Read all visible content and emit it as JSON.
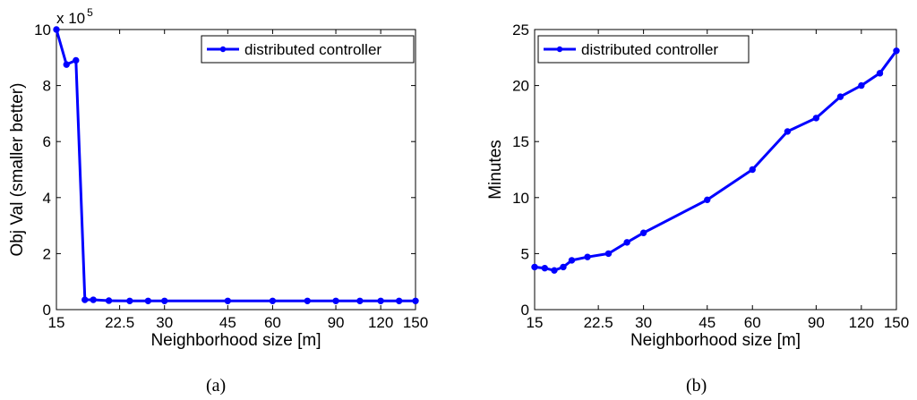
{
  "chart_data": [
    {
      "type": "line",
      "caption": "(a)",
      "xscale": "log",
      "xlim": [
        15,
        150
      ],
      "xticks": [
        15,
        22.5,
        30,
        45,
        60,
        90,
        120,
        150
      ],
      "xtick_labels": [
        "15",
        "22.5",
        "30",
        "45",
        "60",
        "90",
        "120",
        "150"
      ],
      "xlabel": "Neighborhood size [m]",
      "ylabel": "Obj Val (smaller better)",
      "ylim": [
        0,
        10
      ],
      "yticks": [
        0,
        2,
        4,
        6,
        8,
        10
      ],
      "ytick_labels": [
        "0",
        "2",
        "4",
        "6",
        "8",
        "10"
      ],
      "y_multiplier_label": "x 10",
      "y_multiplier_exponent": "5",
      "legend_position": "top-right",
      "series": [
        {
          "name": "distributed controller",
          "color": "#0000ff",
          "x": [
            15,
            16,
            17,
            18,
            19,
            21,
            24,
            27,
            30,
            45,
            60,
            75,
            90,
            105,
            120,
            135,
            150
          ],
          "y": [
            10.0,
            8.75,
            8.9,
            0.35,
            0.35,
            0.32,
            0.31,
            0.31,
            0.31,
            0.31,
            0.31,
            0.31,
            0.31,
            0.31,
            0.31,
            0.31,
            0.31
          ]
        }
      ]
    },
    {
      "type": "line",
      "caption": "(b)",
      "xscale": "log",
      "xlim": [
        15,
        150
      ],
      "xticks": [
        15,
        22.5,
        30,
        45,
        60,
        90,
        120,
        150
      ],
      "xtick_labels": [
        "15",
        "22.5",
        "30",
        "45",
        "60",
        "90",
        "120",
        "150"
      ],
      "xlabel": "Neighborhood size [m]",
      "ylabel": "Minutes",
      "ylim": [
        0,
        25
      ],
      "yticks": [
        0,
        5,
        10,
        15,
        20,
        25
      ],
      "ytick_labels": [
        "0",
        "5",
        "10",
        "15",
        "20",
        "25"
      ],
      "legend_position": "top-left",
      "series": [
        {
          "name": "distributed controller",
          "color": "#0000ff",
          "x": [
            15,
            16,
            17,
            18,
            19,
            21,
            24,
            27,
            30,
            45,
            60,
            75,
            90,
            105,
            120,
            135,
            150
          ],
          "y": [
            3.8,
            3.7,
            3.5,
            3.8,
            4.4,
            4.7,
            5.0,
            6.0,
            6.85,
            9.8,
            12.5,
            15.9,
            17.1,
            19.0,
            20.0,
            21.1,
            23.1
          ]
        }
      ]
    }
  ]
}
